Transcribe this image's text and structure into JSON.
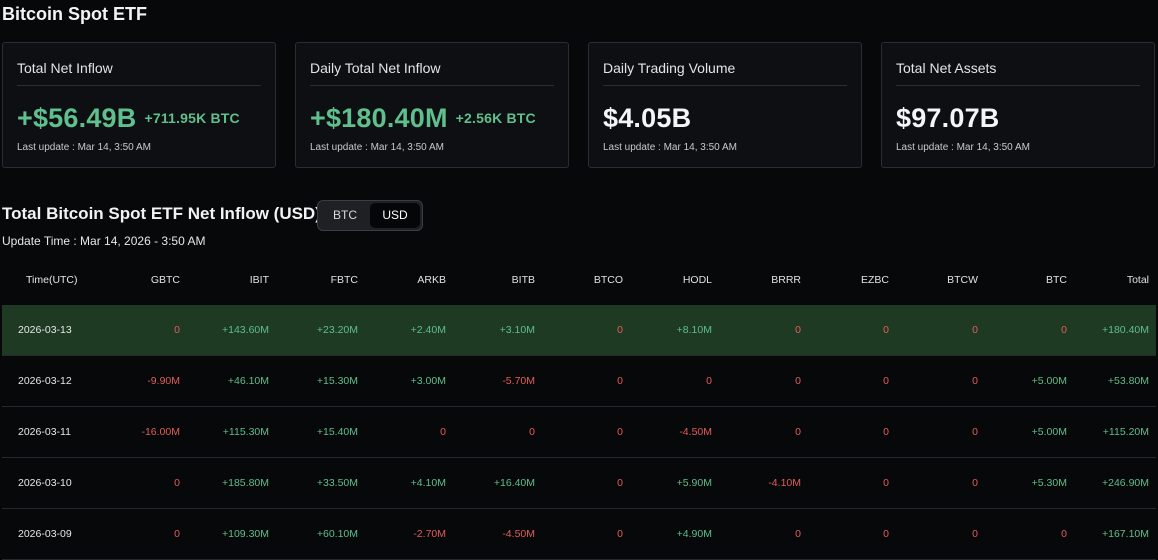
{
  "page_title": "Bitcoin Spot ETF",
  "cards": [
    {
      "title": "Total Net Inflow",
      "value": "+$56.49B",
      "sub": "+711.95K BTC",
      "update": "Last update : Mar 14, 3:50 AM",
      "tone": "green"
    },
    {
      "title": "Daily Total Net Inflow",
      "value": "+$180.40M",
      "sub": "+2.56K BTC",
      "update": "Last update : Mar 14, 3:50 AM",
      "tone": "green"
    },
    {
      "title": "Daily Trading Volume",
      "value": "$4.05B",
      "sub": "",
      "update": "Last update : Mar 14, 3:50 AM",
      "tone": "white"
    },
    {
      "title": "Total Net Assets",
      "value": "$97.07B",
      "sub": "",
      "update": "Last update : Mar 14, 3:50 AM",
      "tone": "white"
    }
  ],
  "section_title": "Total Bitcoin Spot ETF Net Inflow (USD)",
  "toggle": {
    "btc": "BTC",
    "usd": "USD",
    "selected": "USD"
  },
  "update_time": "Update Time : Mar 14, 2026 - 3:50 AM",
  "colors": {
    "positive": "#5fbf8d",
    "negative": "#e35c5c",
    "highlight_row": "#1e3a22",
    "background": "#07080a"
  },
  "table": {
    "headers": [
      "Time(UTC)",
      "GBTC",
      "IBIT",
      "FBTC",
      "ARKB",
      "BITB",
      "BTCO",
      "HODL",
      "BRRR",
      "EZBC",
      "BTCW",
      "BTC",
      "Total"
    ],
    "rows": [
      [
        "2026-03-13",
        "0",
        "+143.60M",
        "+23.20M",
        "+2.40M",
        "+3.10M",
        "0",
        "+8.10M",
        "0",
        "0",
        "0",
        "0",
        "+180.40M"
      ],
      [
        "2026-03-12",
        "-9.90M",
        "+46.10M",
        "+15.30M",
        "+3.00M",
        "-5.70M",
        "0",
        "0",
        "0",
        "0",
        "0",
        "+5.00M",
        "+53.80M"
      ],
      [
        "2026-03-11",
        "-16.00M",
        "+115.30M",
        "+15.40M",
        "0",
        "0",
        "0",
        "-4.50M",
        "0",
        "0",
        "0",
        "+5.00M",
        "+115.20M"
      ],
      [
        "2026-03-10",
        "0",
        "+185.80M",
        "+33.50M",
        "+4.10M",
        "+16.40M",
        "0",
        "+5.90M",
        "-4.10M",
        "0",
        "0",
        "+5.30M",
        "+246.90M"
      ],
      [
        "2026-03-09",
        "0",
        "+109.30M",
        "+60.10M",
        "-2.70M",
        "-4.50M",
        "0",
        "+4.90M",
        "0",
        "0",
        "0",
        "0",
        "+167.10M"
      ]
    ]
  }
}
